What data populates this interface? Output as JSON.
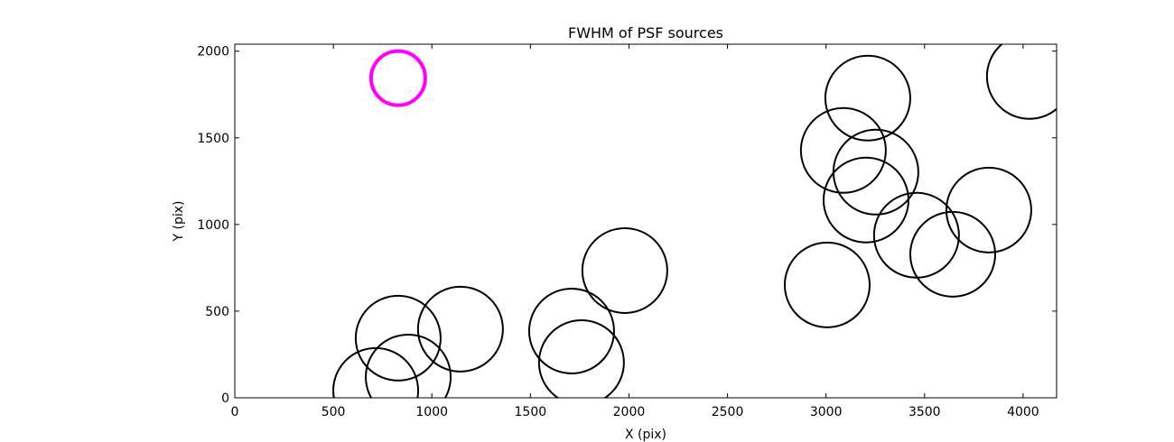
{
  "chart_data": {
    "type": "scatter",
    "title": "FWHM of PSF sources",
    "x_label": "X (pix)",
    "y_label": "Y (pix)",
    "xlim": [
      0,
      4170
    ],
    "ylim": [
      0,
      2040
    ],
    "xticks": [
      0,
      500,
      1000,
      1500,
      2000,
      2500,
      3000,
      3500,
      4000
    ],
    "yticks": [
      0,
      500,
      1000,
      1500,
      2000
    ],
    "grid": false,
    "series": [
      {
        "color": "#000000",
        "x": [
          715,
          829,
          880,
          1145,
          1709,
          1759,
          1979,
          3006,
          3088,
          3212,
          3253,
          3203,
          3459,
          3643,
          3826,
          4032
        ],
        "values": [
          42,
          344,
          120,
          396,
          385,
          203,
          734,
          651,
          1427,
          1729,
          1302,
          1141,
          938,
          828,
          1083,
          1854
        ],
        "sizes": [
          47,
          47,
          47,
          47,
          47,
          47,
          47,
          47,
          47,
          47,
          47,
          47,
          47,
          47,
          47,
          47
        ]
      },
      {
        "color": "#ff00ff",
        "x": [
          829
        ],
        "values": [
          1844
        ],
        "sizes": [
          30
        ]
      }
    ]
  }
}
